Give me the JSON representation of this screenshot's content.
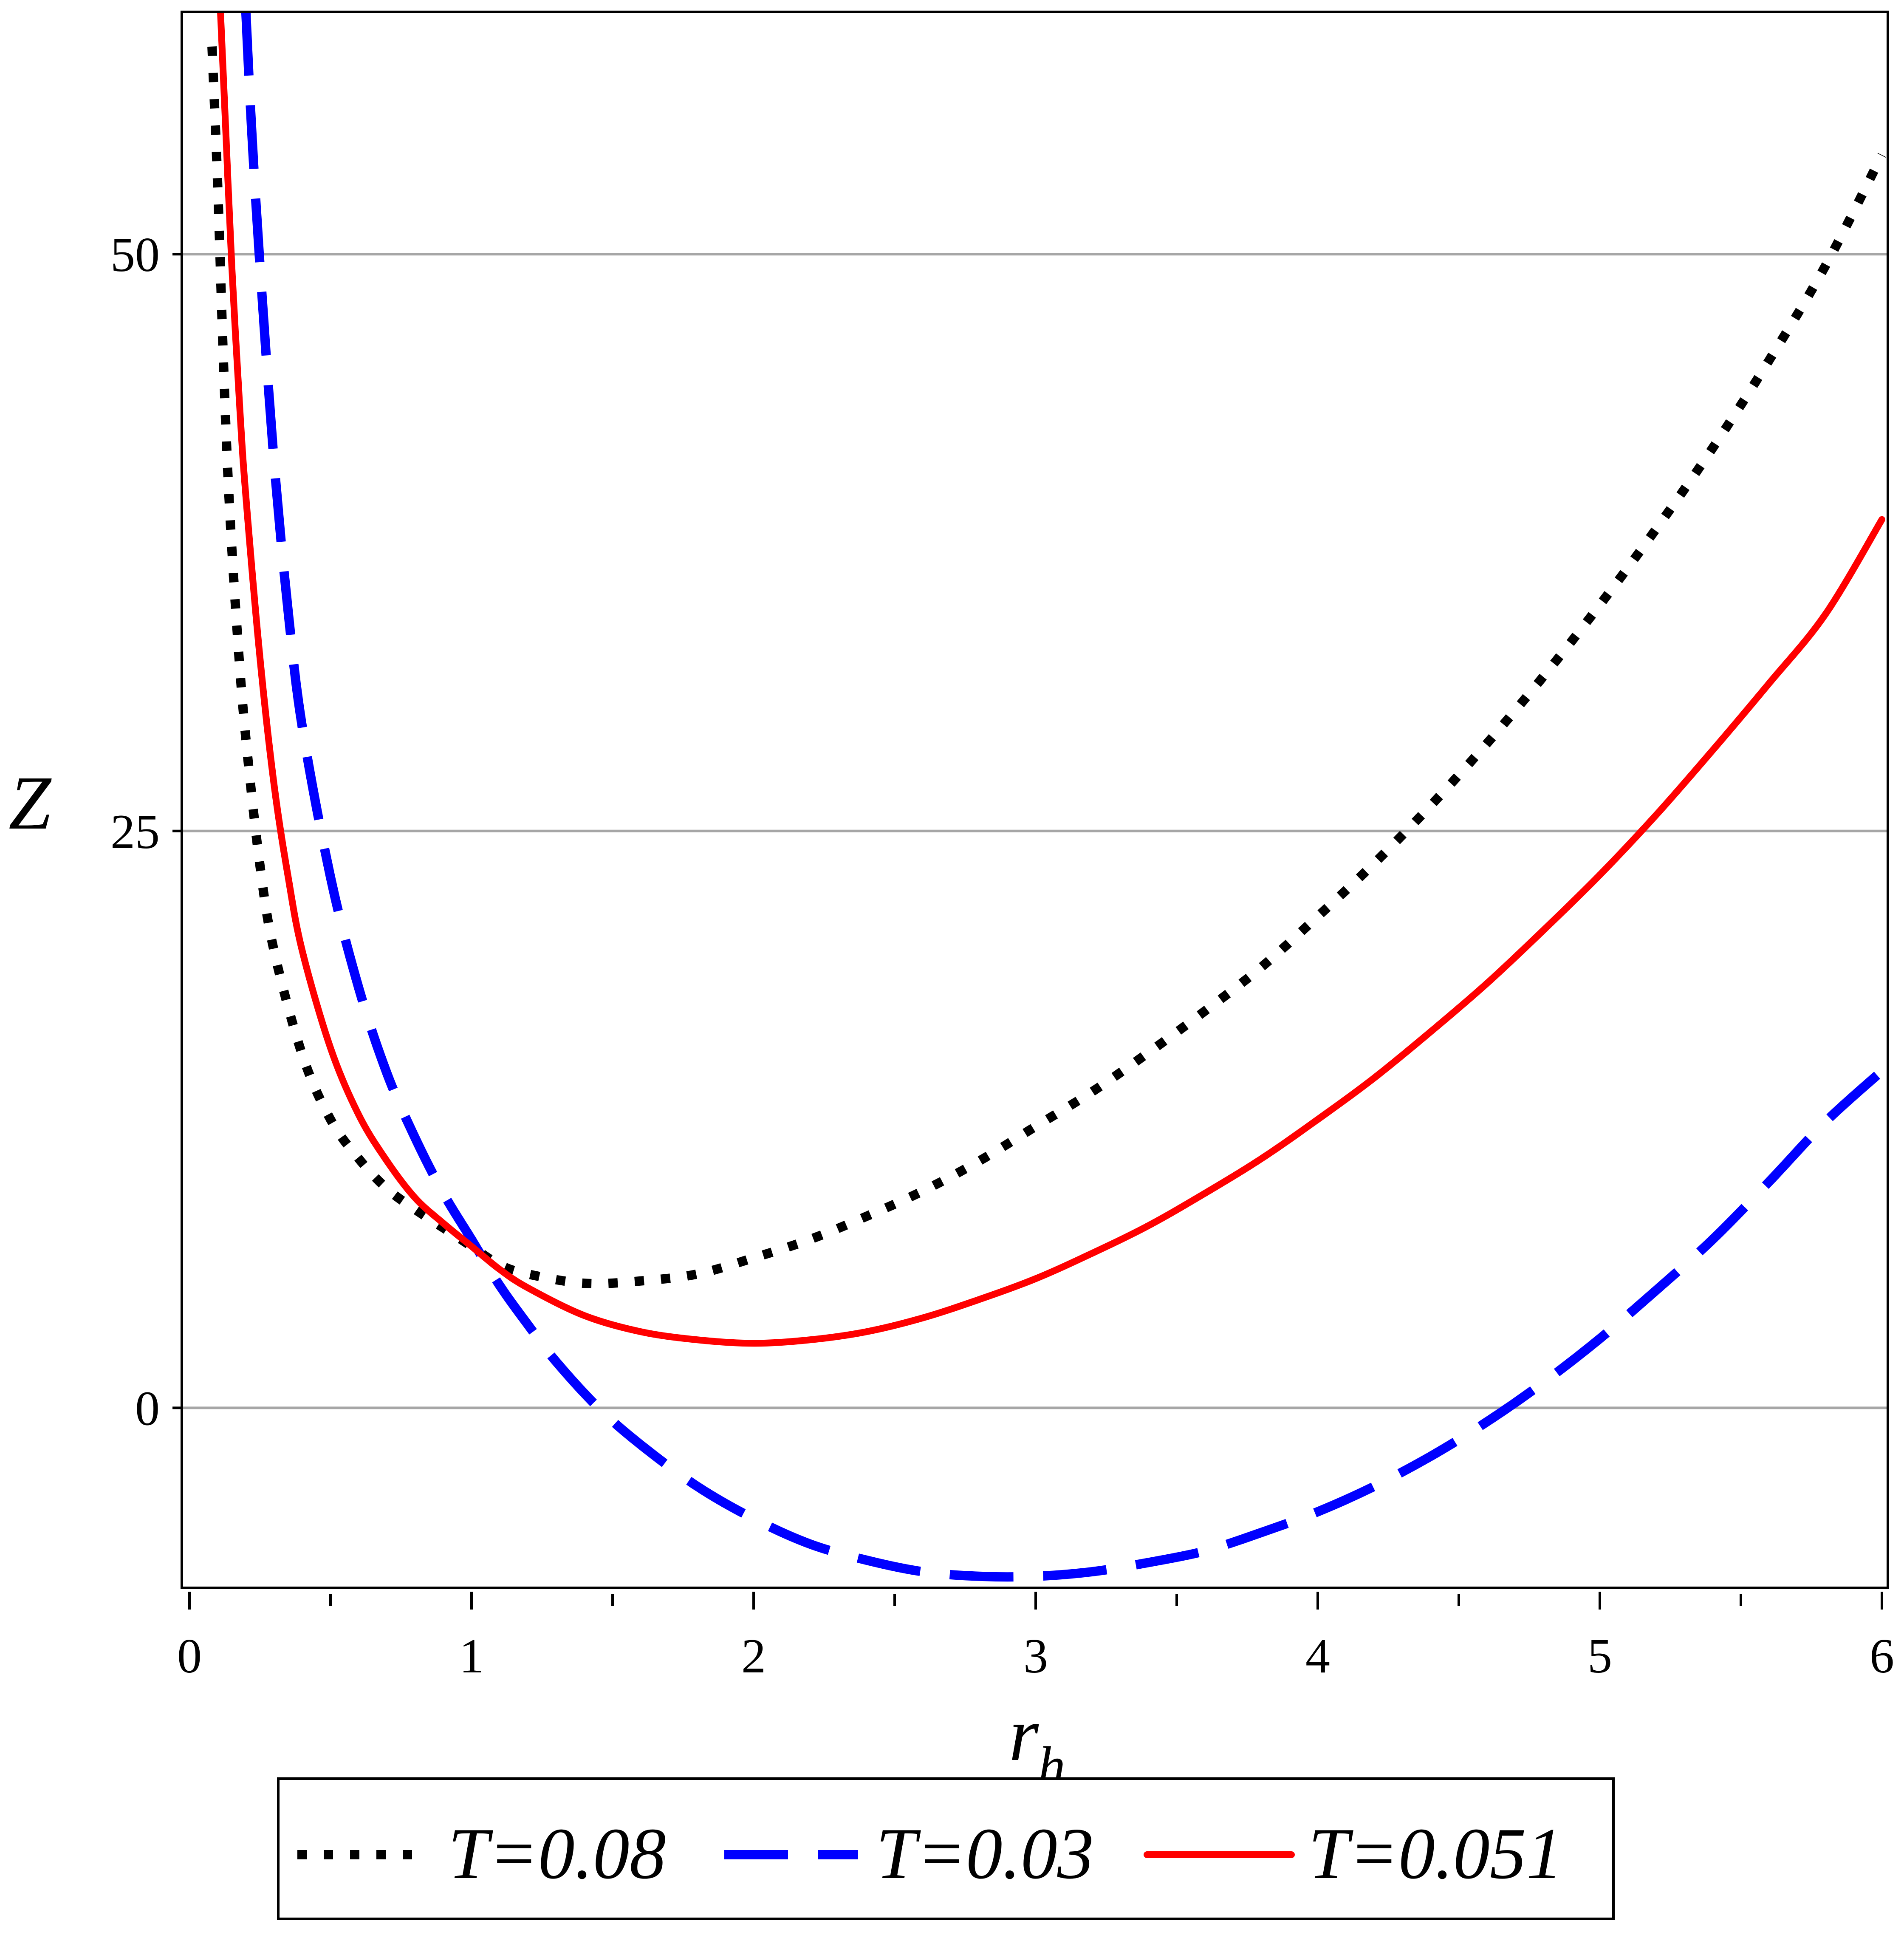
{
  "chart_data": {
    "type": "line",
    "xlabel": "r",
    "xlabel_sub": "h",
    "ylabel": "Z",
    "xlim": [
      0,
      6
    ],
    "ylim": [
      -7.8,
      60.5
    ],
    "x_ticks": [
      0,
      1,
      2,
      3,
      4,
      5,
      6
    ],
    "x_tick_labels": [
      "0",
      "1",
      "2",
      "3",
      "4",
      "5",
      "6"
    ],
    "x_minor_ticks": [
      0.5,
      1.5,
      2.5,
      3.5,
      4.5,
      5.5
    ],
    "y_ticks": [
      0,
      25,
      50
    ],
    "y_tick_labels": [
      "0",
      "25",
      "50"
    ],
    "grid": "horizontal",
    "legend_position": "bottom",
    "series": [
      {
        "name": "T=0.08",
        "style": "dotted",
        "color": "#000000",
        "x": [
          0.08,
          0.1,
          0.12,
          0.14,
          0.17,
          0.2,
          0.25,
          0.3,
          0.4,
          0.5,
          0.6,
          0.7,
          0.8,
          0.9,
          1.0,
          1.1,
          1.2,
          1.4,
          1.6,
          1.8,
          2.0,
          2.2,
          2.4,
          2.6,
          2.8,
          3.0,
          3.2,
          3.4,
          3.6,
          3.8,
          4.0,
          4.2,
          4.4,
          4.6,
          4.8,
          5.0,
          5.2,
          5.4,
          5.6,
          5.8,
          6.0
        ],
        "y": [
          59.0,
          53.0,
          45.5,
          39.5,
          33.5,
          29.0,
          23.5,
          19.8,
          15.3,
          12.5,
          10.8,
          9.5,
          8.6,
          7.8,
          7.0,
          6.2,
          5.8,
          5.4,
          5.5,
          5.8,
          6.5,
          7.3,
          8.3,
          9.4,
          10.7,
          12.2,
          13.7,
          15.4,
          17.2,
          19.1,
          21.3,
          23.6,
          26.1,
          28.8,
          31.7,
          34.8,
          38.1,
          41.6,
          45.4,
          49.5,
          54.3
        ]
      },
      {
        "name": "T=0.03",
        "style": "dashed",
        "color": "#0000ff",
        "x": [
          0.2,
          0.22,
          0.25,
          0.3,
          0.35,
          0.4,
          0.5,
          0.6,
          0.7,
          0.8,
          0.9,
          1.0,
          1.1,
          1.2,
          1.3,
          1.45,
          1.6,
          1.8,
          2.0,
          2.2,
          2.4,
          2.6,
          2.8,
          3.0,
          3.2,
          3.4,
          3.6,
          3.8,
          4.0,
          4.2,
          4.4,
          4.6,
          4.8,
          5.0,
          5.2,
          5.4,
          5.6,
          5.8,
          6.0
        ],
        "y": [
          60.5,
          55.5,
          49.5,
          41.0,
          34.5,
          29.5,
          23.0,
          18.2,
          14.5,
          11.7,
          9.3,
          7.3,
          5.3,
          3.6,
          2.0,
          0.0,
          -1.6,
          -3.4,
          -4.8,
          -5.9,
          -6.6,
          -7.1,
          -7.3,
          -7.3,
          -7.1,
          -6.7,
          -6.2,
          -5.4,
          -4.5,
          -3.4,
          -2.1,
          -0.6,
          1.1,
          3.0,
          5.1,
          7.3,
          9.8,
          12.4,
          14.6
        ]
      },
      {
        "name": "T=0.051",
        "style": "solid",
        "color": "#ff0000",
        "x": [
          0.11,
          0.13,
          0.15,
          0.18,
          0.2,
          0.25,
          0.3,
          0.35,
          0.4,
          0.5,
          0.6,
          0.7,
          0.8,
          0.9,
          1.0,
          1.1,
          1.2,
          1.4,
          1.6,
          1.8,
          2.0,
          2.2,
          2.4,
          2.6,
          2.8,
          3.0,
          3.2,
          3.4,
          3.6,
          3.8,
          4.0,
          4.2,
          4.4,
          4.6,
          4.8,
          5.0,
          5.2,
          5.4,
          5.6,
          5.8,
          6.0
        ],
        "y": [
          60.5,
          55.0,
          49.5,
          43.0,
          39.5,
          32.5,
          27.0,
          23.0,
          19.8,
          15.6,
          12.7,
          10.7,
          9.1,
          8.0,
          7.0,
          6.0,
          5.2,
          4.0,
          3.3,
          2.95,
          2.8,
          2.95,
          3.3,
          3.9,
          4.7,
          5.6,
          6.7,
          7.9,
          9.3,
          10.8,
          12.5,
          14.3,
          16.3,
          18.4,
          20.7,
          23.1,
          25.7,
          28.5,
          31.4,
          34.4,
          38.5
        ]
      }
    ]
  }
}
